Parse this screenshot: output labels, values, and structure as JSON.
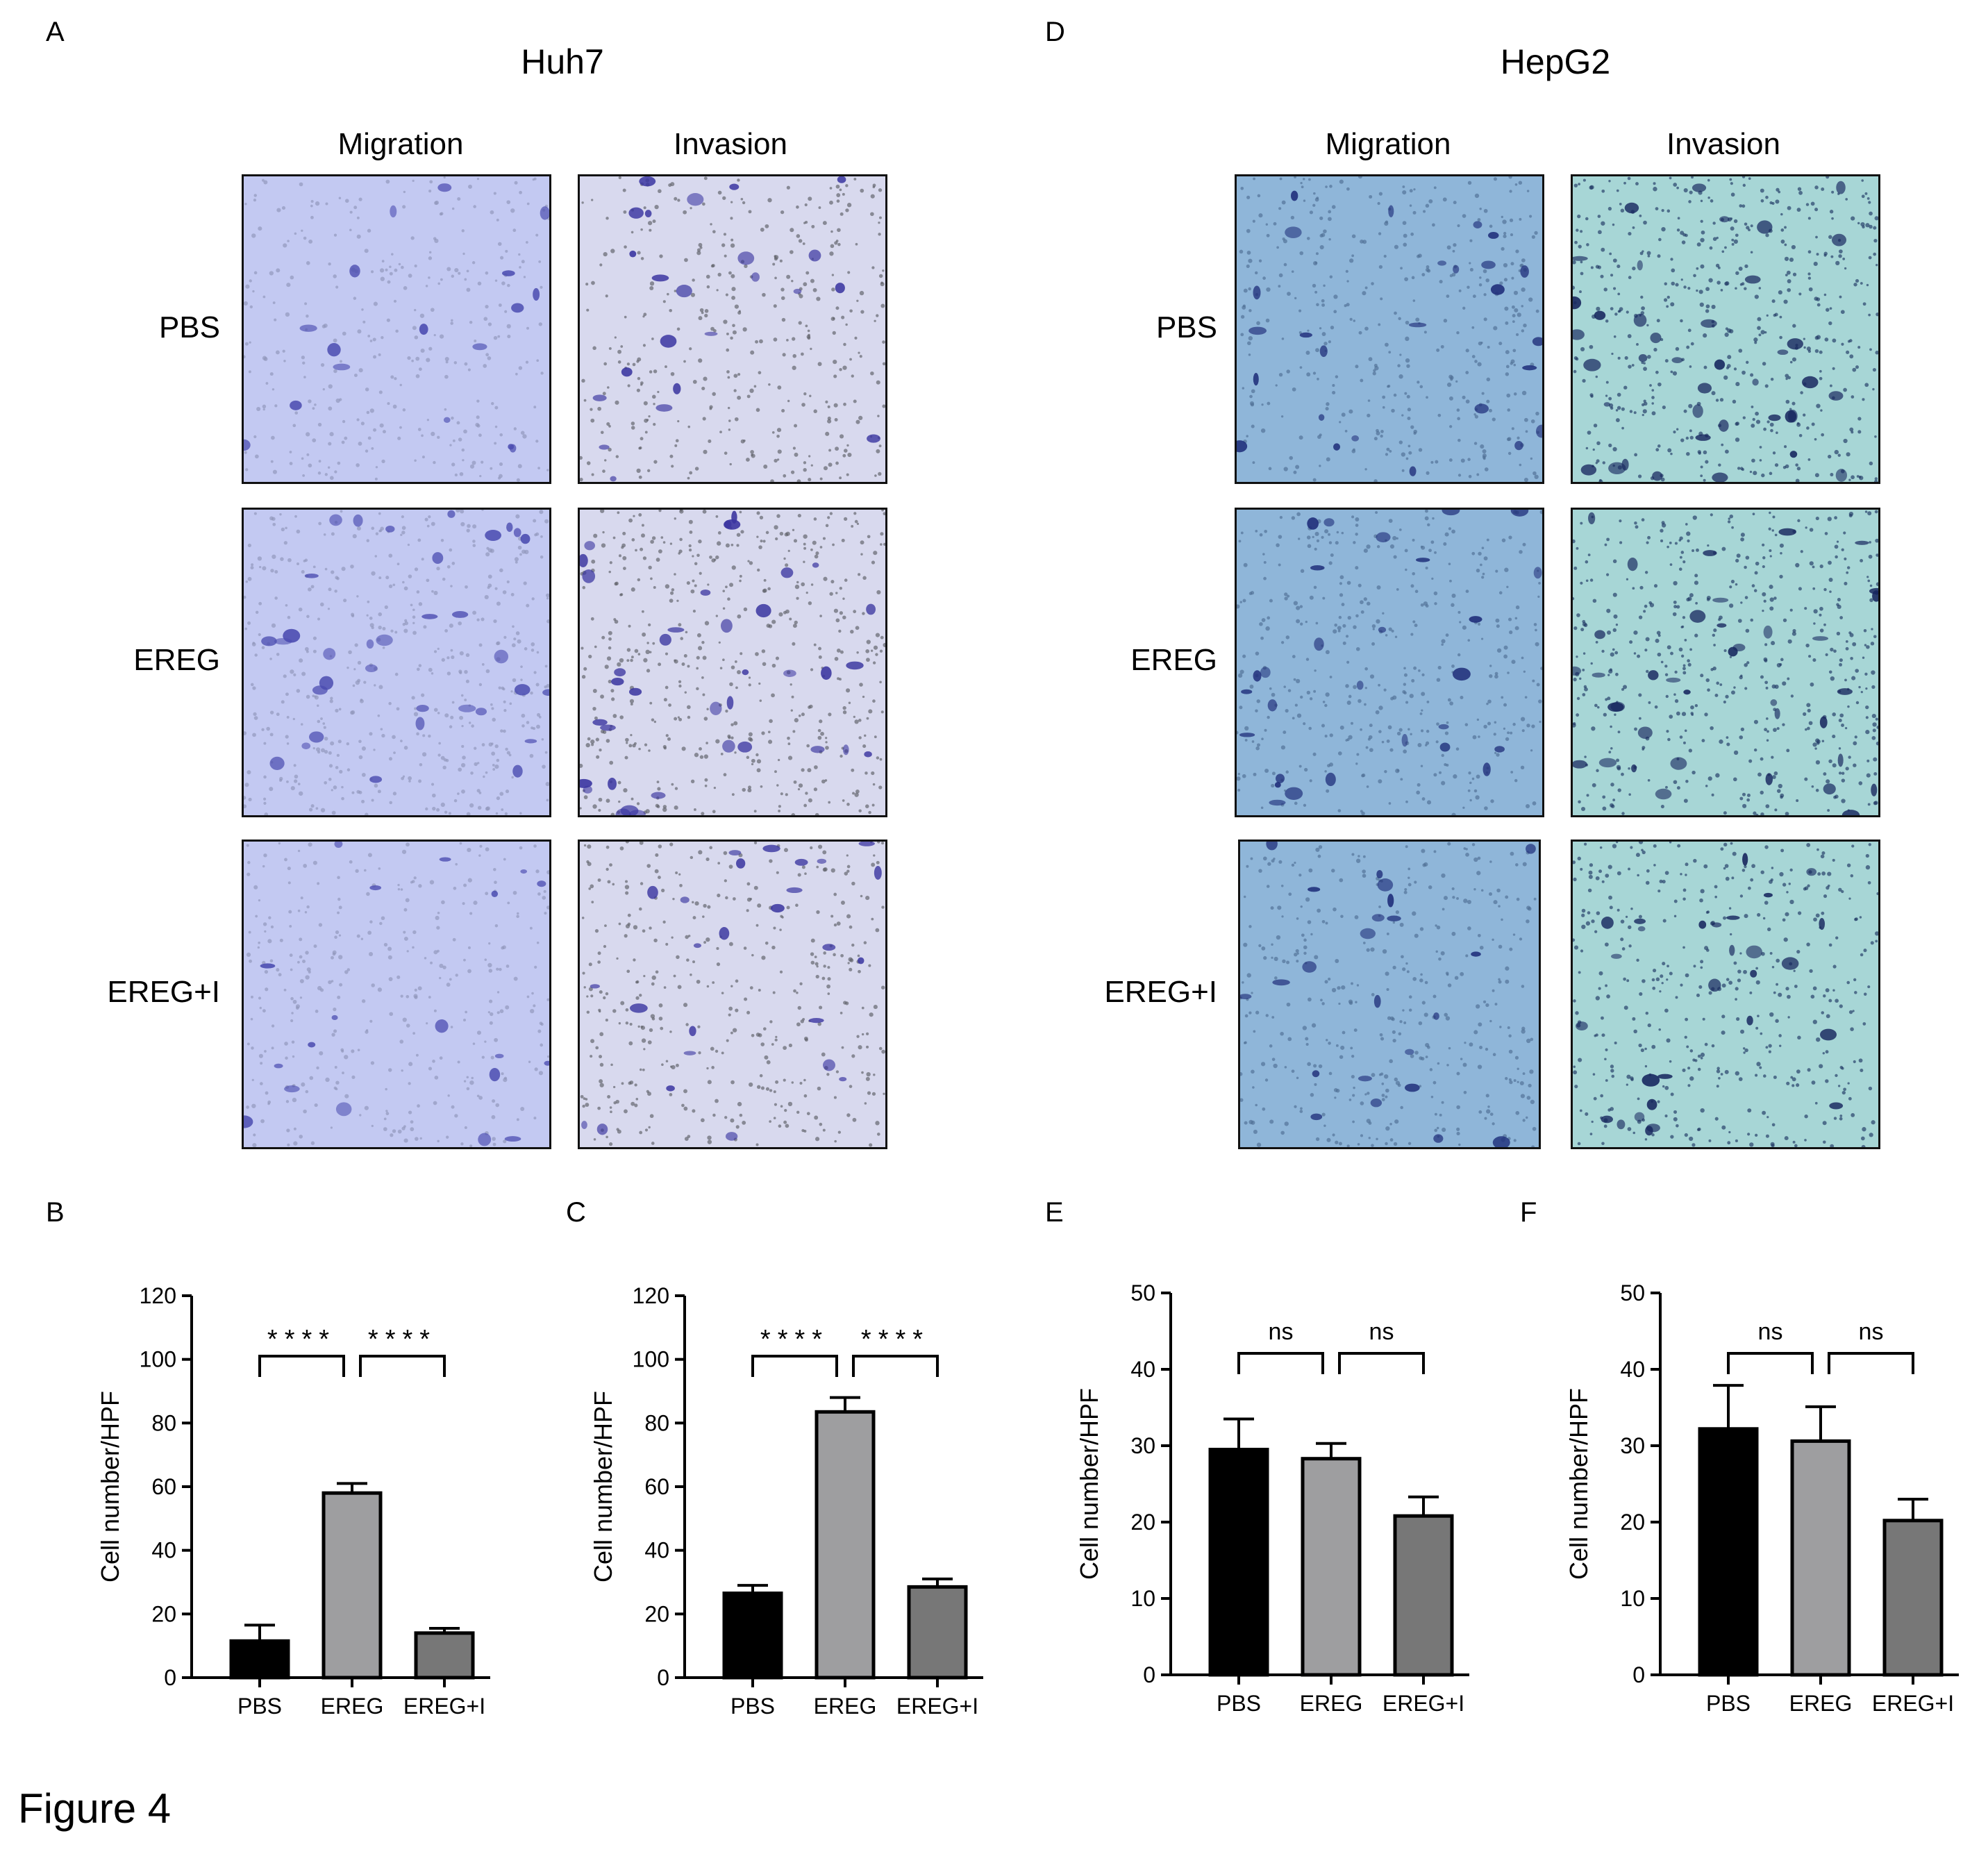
{
  "figure_title": "Figure 4",
  "panels": {
    "A": {
      "letter": "A",
      "cell_line": "Huh7",
      "columns": [
        "Migration",
        "Invasion"
      ],
      "rows": [
        "PBS",
        "EREG",
        "EREG+I"
      ]
    },
    "D": {
      "letter": "D",
      "cell_line": "HepG2",
      "columns": [
        "Migration",
        "Invasion"
      ],
      "rows": [
        "PBS",
        "EREG",
        "EREG+I"
      ]
    },
    "B": {
      "letter": "B"
    },
    "C": {
      "letter": "C"
    },
    "E": {
      "letter": "E"
    },
    "F": {
      "letter": "F"
    }
  },
  "colors": {
    "huh7_migration_bg": "#c3c9f2",
    "huh7_invasion_bg": "#d8d9ee",
    "hepg2_migration_bg": "#8fb6d9",
    "hepg2_invasion_bg": "#a7d6d6",
    "cell_stain": "#2c2a8c",
    "bar_pbs": "#000000",
    "bar_ereg": "#9e9ea0",
    "bar_eregi": "#777777"
  },
  "chart_data": [
    {
      "panel": "B",
      "type": "bar",
      "categories": [
        "PBS",
        "EREG",
        "EREG+I"
      ],
      "values": [
        11.5,
        58,
        14
      ],
      "errors": [
        5,
        3,
        1.5
      ],
      "ylabel": "Cell number/HPF",
      "xlabel": "",
      "ylim": [
        0,
        120
      ],
      "yticks": [
        0,
        20,
        40,
        60,
        80,
        100,
        120
      ],
      "comparisons": [
        {
          "from": 0,
          "to": 1,
          "label": "****"
        },
        {
          "from": 1,
          "to": 2,
          "label": "****"
        }
      ]
    },
    {
      "panel": "C",
      "type": "bar",
      "categories": [
        "PBS",
        "EREG",
        "EREG+I"
      ],
      "values": [
        26.5,
        83.5,
        28.5
      ],
      "errors": [
        2.5,
        4.5,
        2.5
      ],
      "ylabel": "Cell number/HPF",
      "xlabel": "",
      "ylim": [
        0,
        120
      ],
      "yticks": [
        0,
        20,
        40,
        60,
        80,
        100,
        120
      ],
      "comparisons": [
        {
          "from": 0,
          "to": 1,
          "label": "****"
        },
        {
          "from": 1,
          "to": 2,
          "label": "****"
        }
      ]
    },
    {
      "panel": "E",
      "type": "bar",
      "categories": [
        "PBS",
        "EREG",
        "EREG+I"
      ],
      "values": [
        29.5,
        28.3,
        20.8
      ],
      "errors": [
        4,
        2,
        2.5
      ],
      "ylabel": "Cell number/HPF",
      "xlabel": "",
      "ylim": [
        0,
        50
      ],
      "yticks": [
        0,
        10,
        20,
        30,
        40,
        50
      ],
      "comparisons": [
        {
          "from": 0,
          "to": 1,
          "label": "ns"
        },
        {
          "from": 1,
          "to": 2,
          "label": "ns"
        }
      ]
    },
    {
      "panel": "F",
      "type": "bar",
      "categories": [
        "PBS",
        "EREG",
        "EREG+I"
      ],
      "values": [
        32.2,
        30.6,
        20.2
      ],
      "errors": [
        5.7,
        4.5,
        2.8
      ],
      "ylabel": "Cell number/HPF",
      "xlabel": "",
      "ylim": [
        0,
        50
      ],
      "yticks": [
        0,
        10,
        20,
        30,
        40,
        50
      ],
      "comparisons": [
        {
          "from": 0,
          "to": 1,
          "label": "ns"
        },
        {
          "from": 1,
          "to": 2,
          "label": "ns"
        }
      ]
    }
  ]
}
